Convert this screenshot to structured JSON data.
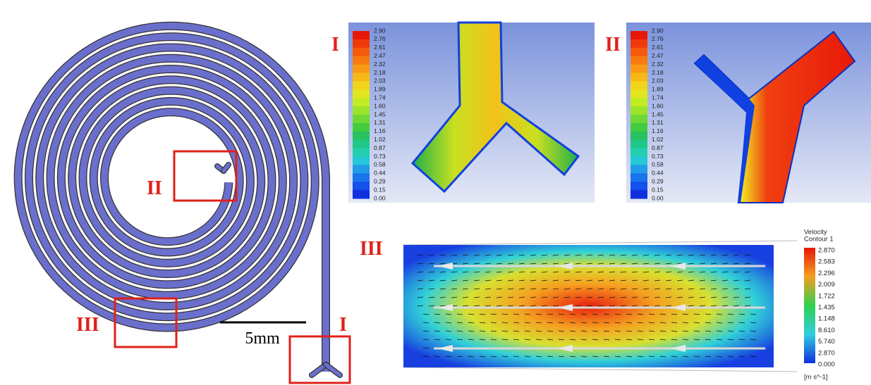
{
  "spiral": {
    "labels": [
      "II",
      "III",
      "I"
    ],
    "scale_bar": "5mm"
  },
  "panel_1": {
    "label": "I",
    "colorbar": [
      "2.90",
      "2.76",
      "2.61",
      "2.47",
      "2.32",
      "2.18",
      "2.03",
      "1.89",
      "1.74",
      "1.60",
      "1.45",
      "1.31",
      "1.16",
      "1.02",
      "0.87",
      "0.73",
      "0.58",
      "0.44",
      "0.29",
      "0.15",
      "0.00"
    ]
  },
  "panel_2": {
    "label": "II",
    "colorbar": [
      "2.90",
      "2.76",
      "2.61",
      "2.47",
      "2.32",
      "2.18",
      "2.03",
      "1.89",
      "1.74",
      "1.60",
      "1.45",
      "1.31",
      "1.16",
      "1.02",
      "0.87",
      "0.73",
      "0.58",
      "0.44",
      "0.29",
      "0.15",
      "0.00"
    ]
  },
  "panel_3": {
    "label": "III",
    "legend_title": [
      "Velocity",
      "Contour 1"
    ],
    "legend_ticks": [
      "2.870",
      "2.583",
      "2.296",
      "2.009",
      "1.722",
      "1.435",
      "1.148",
      "8.610",
      "5.740",
      "2.870",
      "0.000"
    ],
    "unit": "[m s^-1]"
  }
}
